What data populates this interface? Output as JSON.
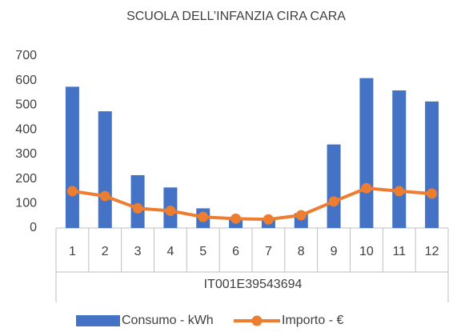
{
  "chart_data": {
    "type": "bar",
    "title": "SCUOLA DELL’INFANZIA CIRA CARA",
    "categories": [
      "1",
      "2",
      "3",
      "4",
      "5",
      "6",
      "7",
      "8",
      "9",
      "10",
      "11",
      "12"
    ],
    "group_label": "IT001E39543694",
    "series": [
      {
        "name": "Consumo - kWh",
        "type": "bar",
        "color": "#4472c4",
        "values": [
          575,
          475,
          215,
          165,
          80,
          40,
          40,
          60,
          340,
          610,
          560,
          515
        ]
      },
      {
        "name": "Importo - €",
        "type": "line",
        "color": "#ed7d31",
        "values": [
          150,
          130,
          80,
          70,
          45,
          38,
          35,
          52,
          108,
          162,
          150,
          140
        ]
      }
    ],
    "ylim": [
      0,
      700
    ],
    "yticks": [
      0,
      100,
      200,
      300,
      400,
      500,
      600,
      700
    ],
    "grid": false,
    "legend": "bottom"
  }
}
